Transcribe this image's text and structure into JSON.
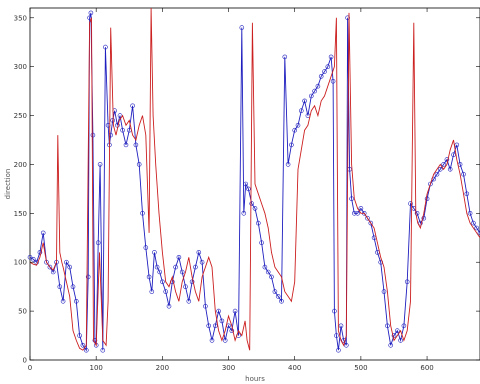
{
  "chart_data": {
    "type": "line",
    "title": "",
    "xlabel": "hours",
    "ylabel": "direction",
    "xlim": [
      0,
      680
    ],
    "ylim": [
      0,
      360
    ],
    "x_ticks": [
      0,
      100,
      200,
      300,
      400,
      500,
      600
    ],
    "x_tick_labels": [
      "0",
      "100",
      "200",
      "300",
      "400",
      "500",
      "600"
    ],
    "y_ticks": [
      0,
      50,
      100,
      150,
      200,
      250,
      300,
      350
    ],
    "y_tick_labels": [
      "0",
      "50",
      "100",
      "150",
      "200",
      "250",
      "300",
      "350"
    ],
    "grid": false,
    "legend": false,
    "series": [
      {
        "color": "#1f1fbf",
        "style": "line-with-dots",
        "x": [
          0,
          5,
          10,
          15,
          20,
          25,
          30,
          35,
          40,
          45,
          50,
          55,
          60,
          65,
          70,
          75,
          80,
          85,
          88,
          90,
          92,
          95,
          98,
          100,
          103,
          106,
          110,
          114,
          118,
          120,
          122,
          125,
          128,
          132,
          136,
          140,
          145,
          150,
          155,
          160,
          165,
          170,
          175,
          180,
          184,
          188,
          192,
          196,
          200,
          205,
          210,
          215,
          220,
          225,
          230,
          235,
          240,
          245,
          250,
          255,
          260,
          265,
          270,
          275,
          280,
          285,
          290,
          295,
          300,
          305,
          310,
          315,
          320,
          323,
          326,
          330,
          335,
          340,
          345,
          350,
          355,
          360,
          365,
          370,
          375,
          380,
          385,
          390,
          395,
          400,
          405,
          410,
          415,
          420,
          425,
          430,
          435,
          440,
          445,
          450,
          455,
          458,
          460,
          463,
          466,
          470,
          474,
          478,
          480,
          483,
          486,
          490,
          495,
          500,
          505,
          510,
          515,
          520,
          525,
          530,
          535,
          540,
          545,
          550,
          555,
          560,
          565,
          570,
          575,
          580,
          585,
          590,
          595,
          600,
          605,
          610,
          615,
          620,
          625,
          630,
          635,
          640,
          645,
          650,
          655,
          660,
          665,
          670,
          675,
          680
        ],
        "y": [
          105,
          103,
          100,
          110,
          130,
          100,
          95,
          90,
          100,
          75,
          60,
          100,
          95,
          75,
          60,
          25,
          15,
          10,
          85,
          350,
          355,
          230,
          20,
          15,
          120,
          200,
          10,
          320,
          240,
          220,
          230,
          245,
          255,
          240,
          250,
          235,
          220,
          235,
          260,
          220,
          200,
          150,
          115,
          85,
          70,
          110,
          95,
          90,
          80,
          70,
          55,
          80,
          95,
          105,
          90,
          75,
          60,
          80,
          95,
          110,
          100,
          55,
          35,
          20,
          35,
          50,
          40,
          20,
          35,
          30,
          50,
          25,
          340,
          150,
          180,
          175,
          160,
          155,
          140,
          120,
          95,
          90,
          85,
          70,
          65,
          60,
          310,
          200,
          220,
          235,
          240,
          255,
          265,
          250,
          270,
          275,
          280,
          290,
          295,
          300,
          310,
          285,
          50,
          25,
          10,
          35,
          20,
          15,
          350,
          195,
          165,
          150,
          150,
          155,
          150,
          145,
          140,
          125,
          110,
          100,
          70,
          35,
          15,
          25,
          30,
          20,
          35,
          80,
          160,
          155,
          150,
          140,
          145,
          165,
          180,
          185,
          190,
          195,
          200,
          205,
          195,
          210,
          220,
          200,
          190,
          170,
          150,
          140,
          135,
          130
        ],
        "series_note": ""
      },
      {
        "color": "#cc1f1f",
        "style": "line",
        "x": [
          0,
          5,
          10,
          15,
          20,
          25,
          30,
          35,
          40,
          42,
          45,
          48,
          50,
          55,
          60,
          65,
          70,
          75,
          80,
          85,
          90,
          93,
          96,
          100,
          105,
          110,
          115,
          118,
          122,
          126,
          130,
          135,
          140,
          145,
          150,
          155,
          160,
          165,
          170,
          175,
          180,
          183,
          186,
          190,
          195,
          200,
          205,
          210,
          215,
          220,
          225,
          230,
          235,
          240,
          245,
          250,
          255,
          260,
          265,
          270,
          275,
          280,
          285,
          290,
          295,
          300,
          305,
          310,
          315,
          320,
          325,
          328,
          332,
          336,
          340,
          345,
          350,
          355,
          360,
          365,
          370,
          375,
          380,
          385,
          390,
          395,
          400,
          405,
          410,
          415,
          420,
          425,
          430,
          435,
          440,
          445,
          450,
          455,
          460,
          463,
          466,
          470,
          474,
          478,
          482,
          486,
          490,
          495,
          500,
          505,
          510,
          515,
          520,
          525,
          530,
          535,
          540,
          545,
          550,
          555,
          560,
          565,
          570,
          575,
          580,
          583,
          586,
          590,
          595,
          600,
          605,
          610,
          615,
          620,
          625,
          630,
          635,
          640,
          645,
          650,
          655,
          660,
          665,
          670,
          675,
          680
        ],
        "y": [
          100,
          98,
          97,
          105,
          120,
          100,
          95,
          92,
          100,
          230,
          110,
          100,
          95,
          80,
          65,
          30,
          20,
          12,
          10,
          15,
          345,
          350,
          20,
          15,
          110,
          20,
          15,
          60,
          340,
          240,
          230,
          245,
          250,
          240,
          245,
          230,
          225,
          240,
          250,
          230,
          130,
          360,
          250,
          200,
          150,
          110,
          80,
          75,
          85,
          70,
          60,
          80,
          90,
          105,
          85,
          70,
          60,
          85,
          95,
          105,
          95,
          50,
          30,
          20,
          30,
          45,
          35,
          20,
          30,
          25,
          40,
          20,
          10,
          345,
          180,
          170,
          160,
          150,
          135,
          110,
          95,
          90,
          85,
          70,
          65,
          60,
          80,
          195,
          215,
          235,
          240,
          255,
          260,
          250,
          265,
          270,
          280,
          290,
          300,
          350,
          30,
          20,
          15,
          25,
          355,
          200,
          165,
          155,
          150,
          150,
          145,
          140,
          135,
          120,
          105,
          95,
          70,
          35,
          20,
          25,
          30,
          20,
          30,
          60,
          345,
          150,
          140,
          135,
          150,
          170,
          180,
          190,
          195,
          200,
          195,
          200,
          215,
          225,
          205,
          190,
          170,
          150,
          140,
          135,
          130,
          125
        ],
        "series_note": ""
      }
    ]
  }
}
